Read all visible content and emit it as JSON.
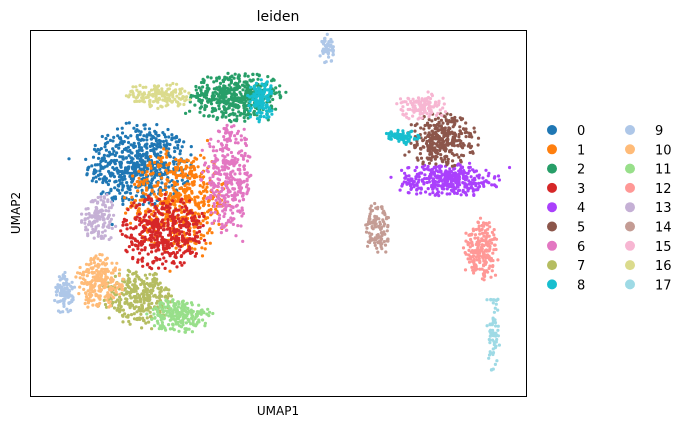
{
  "chart_data": {
    "type": "scatter",
    "title": "leiden",
    "xlabel": "UMAP1",
    "ylabel": "UMAP2",
    "show_ticks": false,
    "grid": false,
    "legend_placement": "right",
    "legend_columns": 2,
    "series": [
      {
        "name": "0",
        "color": "#1f77b4",
        "blobs": [
          {
            "cx": 0.22,
            "cy": 0.63,
            "rx": 0.1,
            "ry": 0.11,
            "n": 620
          }
        ]
      },
      {
        "name": "1",
        "color": "#ff7f0e",
        "blobs": [
          {
            "cx": 0.3,
            "cy": 0.53,
            "rx": 0.1,
            "ry": 0.14,
            "n": 520
          }
        ]
      },
      {
        "name": "2",
        "color": "#279e68",
        "blobs": [
          {
            "cx": 0.415,
            "cy": 0.82,
            "rx": 0.09,
            "ry": 0.065,
            "n": 460
          }
        ]
      },
      {
        "name": "3",
        "color": "#d62728",
        "blobs": [
          {
            "cx": 0.27,
            "cy": 0.45,
            "rx": 0.08,
            "ry": 0.1,
            "n": 420
          }
        ]
      },
      {
        "name": "4",
        "color": "#aa40fc",
        "blobs": [
          {
            "cx": 0.84,
            "cy": 0.59,
            "rx": 0.1,
            "ry": 0.045,
            "n": 360
          }
        ]
      },
      {
        "name": "5",
        "color": "#8c564b",
        "blobs": [
          {
            "cx": 0.83,
            "cy": 0.7,
            "rx": 0.07,
            "ry": 0.07,
            "n": 330
          }
        ]
      },
      {
        "name": "6",
        "color": "#e377c2",
        "blobs": [
          {
            "cx": 0.4,
            "cy": 0.59,
            "rx": 0.05,
            "ry": 0.14,
            "n": 330
          }
        ]
      },
      {
        "name": "7",
        "color": "#b5bd61",
        "blobs": [
          {
            "cx": 0.22,
            "cy": 0.27,
            "rx": 0.07,
            "ry": 0.07,
            "n": 300
          }
        ]
      },
      {
        "name": "8",
        "color": "#17becf",
        "blobs": [
          {
            "cx": 0.465,
            "cy": 0.81,
            "rx": 0.025,
            "ry": 0.055,
            "n": 120
          },
          {
            "cx": 0.75,
            "cy": 0.71,
            "rx": 0.035,
            "ry": 0.02,
            "n": 70
          }
        ]
      },
      {
        "name": "9",
        "color": "#aec7e8",
        "blobs": [
          {
            "cx": 0.07,
            "cy": 0.28,
            "rx": 0.02,
            "ry": 0.055,
            "n": 90
          },
          {
            "cx": 0.6,
            "cy": 0.95,
            "rx": 0.012,
            "ry": 0.04,
            "n": 50
          }
        ]
      },
      {
        "name": "10",
        "color": "#ffbb78",
        "blobs": [
          {
            "cx": 0.14,
            "cy": 0.31,
            "rx": 0.045,
            "ry": 0.07,
            "n": 220
          }
        ]
      },
      {
        "name": "11",
        "color": "#98df8a",
        "blobs": [
          {
            "cx": 0.3,
            "cy": 0.22,
            "rx": 0.06,
            "ry": 0.045,
            "n": 220
          }
        ]
      },
      {
        "name": "12",
        "color": "#ff9896",
        "blobs": [
          {
            "cx": 0.91,
            "cy": 0.4,
            "rx": 0.035,
            "ry": 0.08,
            "n": 200
          }
        ]
      },
      {
        "name": "13",
        "color": "#c5b0d5",
        "blobs": [
          {
            "cx": 0.14,
            "cy": 0.49,
            "rx": 0.035,
            "ry": 0.06,
            "n": 130
          }
        ]
      },
      {
        "name": "14",
        "color": "#c49c94",
        "blobs": [
          {
            "cx": 0.7,
            "cy": 0.46,
            "rx": 0.025,
            "ry": 0.07,
            "n": 110
          }
        ]
      },
      {
        "name": "15",
        "color": "#f7b6d2",
        "blobs": [
          {
            "cx": 0.79,
            "cy": 0.79,
            "rx": 0.05,
            "ry": 0.035,
            "n": 120
          }
        ]
      },
      {
        "name": "16",
        "color": "#dbdb8d",
        "blobs": [
          {
            "cx": 0.26,
            "cy": 0.82,
            "rx": 0.06,
            "ry": 0.035,
            "n": 150
          }
        ]
      },
      {
        "name": "17",
        "color": "#9edae5",
        "blobs": [
          {
            "cx": 0.935,
            "cy": 0.18,
            "rx": 0.012,
            "ry": 0.11,
            "n": 70
          }
        ]
      }
    ]
  }
}
